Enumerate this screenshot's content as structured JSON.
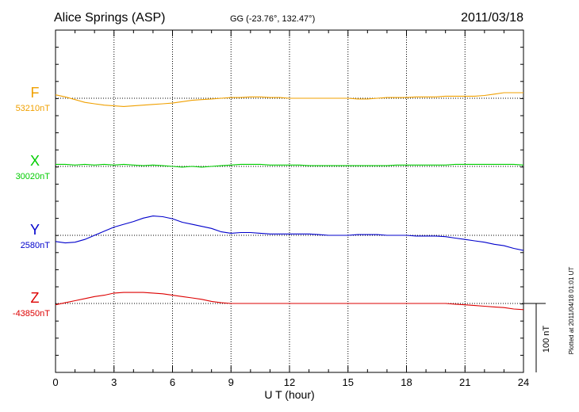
{
  "header": {
    "station": "Alice Springs (ASP)",
    "coords": "GG (-23.76°, 132.47°)",
    "date": "2011/03/18"
  },
  "footer": {
    "plotted": "Plotted at 2011/04/18 01:01  UT"
  },
  "chart_data": {
    "type": "line",
    "xlabel": "U T (hour)",
    "xlim": [
      0,
      24
    ],
    "xticks": [
      "0",
      "3",
      "6",
      "9",
      "12",
      "15",
      "18",
      "21",
      "24"
    ],
    "grid": true,
    "scale_bar": {
      "label": "100 nT",
      "value_nT": 100
    },
    "series": [
      {
        "name": "F",
        "baseline_label": "53210nT",
        "baseline": 53210,
        "color": "#f0a000",
        "x": [
          0,
          0.5,
          1,
          1.5,
          2,
          2.5,
          3,
          3.5,
          4,
          4.5,
          5,
          5.5,
          6,
          6.5,
          7,
          7.5,
          8,
          8.5,
          9,
          9.5,
          10,
          10.5,
          11,
          11.5,
          12,
          12.5,
          13,
          13.5,
          14,
          14.5,
          15,
          15.5,
          16,
          16.5,
          17,
          17.5,
          18,
          18.5,
          19,
          19.5,
          20,
          20.5,
          21,
          21.5,
          22,
          22.5,
          23,
          23.5,
          24
        ],
        "y": [
          53215,
          53212,
          53208,
          53204,
          53202,
          53200,
          53199,
          53198,
          53199,
          53200,
          53201,
          53202,
          53203,
          53205,
          53207,
          53208,
          53209,
          53210,
          53211,
          53211,
          53212,
          53212,
          53211,
          53211,
          53210,
          53210,
          53210,
          53210,
          53210,
          53210,
          53210,
          53209,
          53209,
          53210,
          53211,
          53211,
          53211,
          53212,
          53212,
          53212,
          53213,
          53213,
          53213,
          53213,
          53214,
          53216,
          53218,
          53218,
          53218
        ]
      },
      {
        "name": "X",
        "baseline_label": "30020nT",
        "baseline": 30020,
        "color": "#00cc00",
        "x": [
          0,
          0.5,
          1,
          1.5,
          2,
          2.5,
          3,
          3.5,
          4,
          4.5,
          5,
          5.5,
          6,
          6.5,
          7,
          7.5,
          8,
          8.5,
          9,
          9.5,
          10,
          10.5,
          11,
          11.5,
          12,
          12.5,
          13,
          13.5,
          14,
          14.5,
          15,
          15.5,
          16,
          16.5,
          17,
          17.5,
          18,
          18.5,
          19,
          19.5,
          20,
          20.5,
          21,
          21.5,
          22,
          22.5,
          23,
          23.5,
          24
        ],
        "y": [
          30023,
          30023,
          30022,
          30023,
          30022,
          30023,
          30022,
          30023,
          30022,
          30021,
          30022,
          30021,
          30020,
          30019,
          30020,
          30019,
          30020,
          30021,
          30022,
          30023,
          30023,
          30023,
          30022,
          30022,
          30022,
          30022,
          30021,
          30021,
          30021,
          30021,
          30021,
          30021,
          30021,
          30021,
          30021,
          30022,
          30022,
          30022,
          30022,
          30022,
          30022,
          30023,
          30023,
          30023,
          30023,
          30023,
          30023,
          30023,
          30022
        ]
      },
      {
        "name": "Y",
        "baseline_label": "2580nT",
        "baseline": 2580,
        "color": "#0000cc",
        "x": [
          0,
          0.5,
          1,
          1.5,
          2,
          2.5,
          3,
          3.5,
          4,
          4.5,
          5,
          5.5,
          6,
          6.5,
          7,
          7.5,
          8,
          8.5,
          9,
          9.5,
          10,
          10.5,
          11,
          11.5,
          12,
          12.5,
          13,
          13.5,
          14,
          14.5,
          15,
          15.5,
          16,
          16.5,
          17,
          17.5,
          18,
          18.5,
          19,
          19.5,
          20,
          20.5,
          21,
          21.5,
          22,
          22.5,
          23,
          23.5,
          24
        ],
        "y": [
          2571,
          2569,
          2570,
          2574,
          2580,
          2586,
          2592,
          2596,
          2600,
          2605,
          2608,
          2607,
          2604,
          2599,
          2596,
          2593,
          2590,
          2585,
          2583,
          2584,
          2584,
          2583,
          2582,
          2582,
          2582,
          2582,
          2582,
          2581,
          2580,
          2580,
          2580,
          2581,
          2581,
          2581,
          2580,
          2580,
          2580,
          2579,
          2579,
          2579,
          2578,
          2576,
          2574,
          2572,
          2570,
          2567,
          2565,
          2561,
          2558
        ]
      },
      {
        "name": "Z",
        "baseline_label": "-43850nT",
        "baseline": -43850,
        "color": "#dd0000",
        "x": [
          0,
          0.5,
          1,
          1.5,
          2,
          2.5,
          3,
          3.5,
          4,
          4.5,
          5,
          5.5,
          6,
          6.5,
          7,
          7.5,
          8,
          8.5,
          9,
          9.5,
          10,
          10.5,
          11,
          11.5,
          12,
          12.5,
          13,
          13.5,
          14,
          14.5,
          15,
          15.5,
          16,
          16.5,
          17,
          17.5,
          18,
          18.5,
          19,
          19.5,
          20,
          20.5,
          21,
          21.5,
          22,
          22.5,
          23,
          23.5,
          24
        ],
        "y": [
          -43852,
          -43849,
          -43846,
          -43843,
          -43840,
          -43838,
          -43835,
          -43834,
          -43834,
          -43834,
          -43835,
          -43836,
          -43838,
          -43840,
          -43842,
          -43844,
          -43847,
          -43849,
          -43850,
          -43850,
          -43850,
          -43850,
          -43850,
          -43850,
          -43850,
          -43850,
          -43850,
          -43850,
          -43850,
          -43850,
          -43850,
          -43850,
          -43850,
          -43850,
          -43850,
          -43850,
          -43850,
          -43850,
          -43850,
          -43850,
          -43850,
          -43851,
          -43852,
          -43853,
          -43854,
          -43855,
          -43856,
          -43858,
          -43859
        ]
      }
    ]
  }
}
